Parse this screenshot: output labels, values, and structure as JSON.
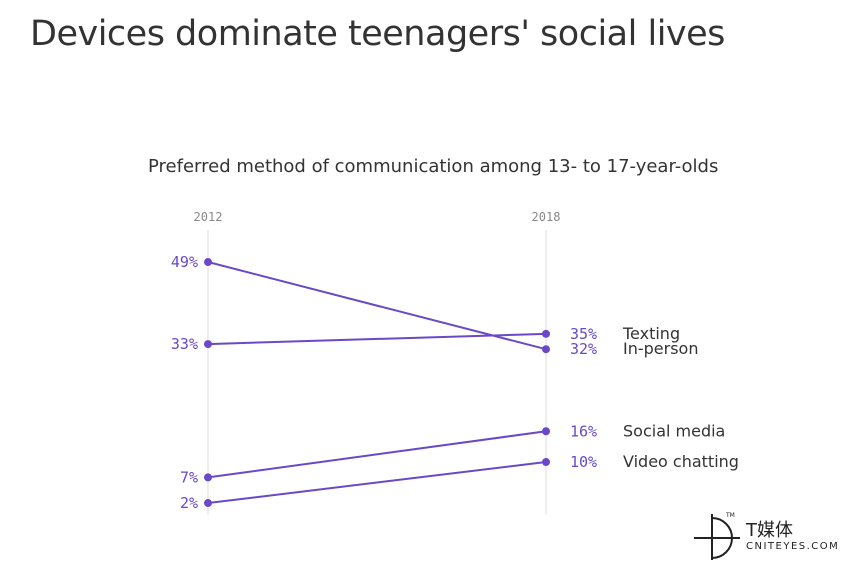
{
  "headline": "Devices dominate teenagers' social lives",
  "chart_data": {
    "type": "line",
    "title": "Preferred method of communication among 13- to 17-year-olds",
    "x": [
      "2012",
      "2018"
    ],
    "ylim": [
      0,
      50
    ],
    "grid": false,
    "series": [
      {
        "name": "Texting",
        "values": [
          33,
          35
        ],
        "labels": [
          "33%",
          "35%"
        ]
      },
      {
        "name": "In-person",
        "values": [
          49,
          32
        ],
        "labels": [
          "49%",
          "32%"
        ]
      },
      {
        "name": "Social media",
        "values": [
          7,
          16
        ],
        "labels": [
          "7%",
          "16%"
        ]
      },
      {
        "name": "Video chatting",
        "values": [
          2,
          10
        ],
        "labels": [
          "2%",
          "10%"
        ]
      }
    ],
    "colors": {
      "line": "#6a48c8",
      "label": "#6a48c8",
      "axis": "#dddddd"
    }
  },
  "watermark": {
    "cn": "T媒体",
    "en": "CNITEYES.COM",
    "tm": "TM"
  }
}
